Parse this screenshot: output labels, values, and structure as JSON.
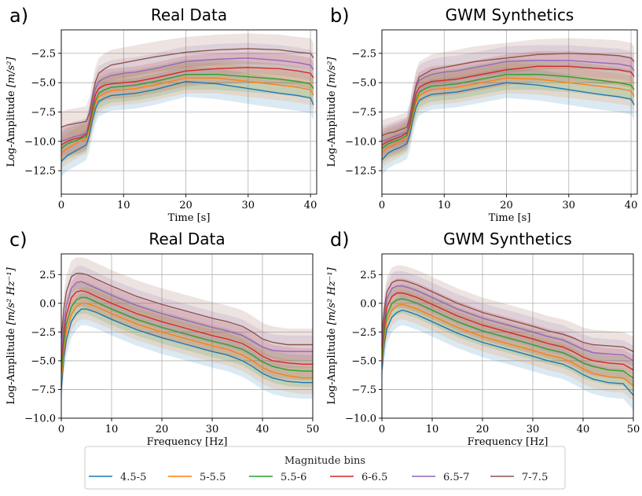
{
  "chart_data": [
    {
      "id": "a",
      "panel_letter": "a)",
      "type": "line",
      "title": "Real Data",
      "xlabel": "Time [s]",
      "ylabel_prefix": "Log-Amplitude ",
      "ylabel_unit": "[m/s²]",
      "xlim": [
        0,
        41
      ],
      "ylim": [
        -14.5,
        -0.5
      ],
      "xticks": [
        0,
        10,
        20,
        30,
        40
      ],
      "yticks": [
        -12.5,
        -10.0,
        -7.5,
        -5.0,
        -2.5
      ],
      "xtick_labels": [
        "0",
        "10",
        "20",
        "30",
        "40"
      ],
      "ytick_labels": [
        "−12.5",
        "−10.0",
        "−7.5",
        "−5.0",
        "−2.5"
      ],
      "grid": true,
      "band_halfwidth": 1.3,
      "x": [
        0,
        1,
        2,
        3,
        4,
        4.5,
        5,
        5.5,
        6,
        7,
        8,
        10,
        12,
        15,
        20,
        25,
        30,
        35,
        38,
        40,
        40.5
      ],
      "series": [
        {
          "name": "4.5-5",
          "values": [
            -11.7,
            -11.2,
            -10.9,
            -10.6,
            -10.3,
            -9.5,
            -8.2,
            -7.2,
            -6.6,
            -6.3,
            -6.1,
            -6.0,
            -5.9,
            -5.6,
            -4.9,
            -5.1,
            -5.5,
            -5.9,
            -6.1,
            -6.3,
            -6.9
          ]
        },
        {
          "name": "5-5.5",
          "values": [
            -11.0,
            -10.6,
            -10.3,
            -10.0,
            -9.8,
            -9.0,
            -7.8,
            -6.8,
            -6.2,
            -5.9,
            -5.7,
            -5.6,
            -5.5,
            -5.2,
            -4.6,
            -4.6,
            -4.9,
            -5.2,
            -5.4,
            -5.6,
            -6.1
          ]
        },
        {
          "name": "5.5-6",
          "values": [
            -10.6,
            -10.2,
            -10.0,
            -9.8,
            -9.6,
            -8.7,
            -7.5,
            -6.5,
            -5.9,
            -5.6,
            -5.4,
            -5.3,
            -5.2,
            -4.9,
            -4.3,
            -4.3,
            -4.5,
            -4.7,
            -4.9,
            -5.1,
            -5.5
          ]
        },
        {
          "name": "6-6.5",
          "values": [
            -10.3,
            -10.0,
            -9.8,
            -9.7,
            -9.4,
            -8.5,
            -7.1,
            -6.0,
            -5.5,
            -5.2,
            -5.1,
            -5.0,
            -4.9,
            -4.6,
            -4.0,
            -3.8,
            -3.7,
            -3.8,
            -4.0,
            -4.2,
            -4.6
          ]
        },
        {
          "name": "6.5-7",
          "values": [
            -10.0,
            -9.8,
            -9.6,
            -9.5,
            -9.3,
            -8.2,
            -6.7,
            -5.5,
            -4.9,
            -4.6,
            -4.4,
            -4.2,
            -4.1,
            -3.8,
            -3.2,
            -3.0,
            -2.9,
            -3.1,
            -3.3,
            -3.5,
            -3.9
          ]
        },
        {
          "name": "7-7.5",
          "values": [
            -8.8,
            -8.6,
            -8.5,
            -8.4,
            -8.3,
            -7.6,
            -6.2,
            -4.9,
            -4.2,
            -3.8,
            -3.5,
            -3.3,
            -3.1,
            -2.8,
            -2.4,
            -2.2,
            -2.1,
            -2.2,
            -2.4,
            -2.5,
            -2.9
          ]
        }
      ]
    },
    {
      "id": "b",
      "panel_letter": "b)",
      "type": "line",
      "title": "GWM Synthetics",
      "xlabel": "Time [s]",
      "ylabel_prefix": "Log-Amplitude ",
      "ylabel_unit": "[m/s²]",
      "xlim": [
        0,
        41
      ],
      "ylim": [
        -14.5,
        -0.5
      ],
      "xticks": [
        0,
        10,
        20,
        30,
        40
      ],
      "yticks": [
        -12.5,
        -10.0,
        -7.5,
        -5.0,
        -2.5
      ],
      "xtick_labels": [
        "0",
        "10",
        "20",
        "30",
        "40"
      ],
      "ytick_labels": [
        "−12.5",
        "−10.0",
        "−7.5",
        "−5.0",
        "−2.5"
      ],
      "grid": true,
      "band_halfwidth": 1.3,
      "x": [
        0,
        1,
        2,
        3,
        4,
        4.5,
        5,
        5.5,
        6,
        7,
        8,
        10,
        12,
        15,
        20,
        25,
        30,
        35,
        38,
        40,
        40.5
      ],
      "series": [
        {
          "name": "4.5-5",
          "values": [
            -11.6,
            -11.0,
            -10.7,
            -10.5,
            -10.2,
            -9.4,
            -8.1,
            -7.1,
            -6.5,
            -6.2,
            -6.0,
            -5.9,
            -5.8,
            -5.5,
            -5.0,
            -5.2,
            -5.6,
            -6.0,
            -6.2,
            -6.4,
            -6.9
          ]
        },
        {
          "name": "5-5.5",
          "values": [
            -11.0,
            -10.5,
            -10.3,
            -10.0,
            -9.7,
            -8.9,
            -7.7,
            -6.7,
            -6.1,
            -5.8,
            -5.6,
            -5.5,
            -5.4,
            -5.1,
            -4.6,
            -4.7,
            -5.0,
            -5.3,
            -5.5,
            -5.7,
            -6.2
          ]
        },
        {
          "name": "5.5-6",
          "values": [
            -10.6,
            -10.2,
            -10.0,
            -9.8,
            -9.5,
            -8.6,
            -7.4,
            -6.4,
            -5.8,
            -5.5,
            -5.3,
            -5.2,
            -5.1,
            -4.8,
            -4.3,
            -4.3,
            -4.5,
            -4.8,
            -5.0,
            -5.2,
            -5.6
          ]
        },
        {
          "name": "6-6.5",
          "values": [
            -10.3,
            -10.0,
            -9.8,
            -9.6,
            -9.3,
            -8.4,
            -7.0,
            -5.9,
            -5.4,
            -5.1,
            -4.9,
            -4.8,
            -4.7,
            -4.4,
            -3.9,
            -3.6,
            -3.6,
            -3.8,
            -3.9,
            -4.1,
            -4.5
          ]
        },
        {
          "name": "6.5-7",
          "values": [
            -10.0,
            -9.8,
            -9.6,
            -9.4,
            -9.2,
            -8.1,
            -6.6,
            -5.4,
            -4.8,
            -4.5,
            -4.3,
            -4.1,
            -4.0,
            -3.7,
            -3.2,
            -3.1,
            -3.1,
            -3.3,
            -3.4,
            -3.6,
            -4.0
          ]
        },
        {
          "name": "7-7.5",
          "values": [
            -9.5,
            -9.3,
            -9.2,
            -9.0,
            -8.8,
            -7.9,
            -6.4,
            -5.2,
            -4.5,
            -4.2,
            -3.9,
            -3.7,
            -3.5,
            -3.2,
            -2.9,
            -2.6,
            -2.5,
            -2.6,
            -2.7,
            -2.9,
            -3.2
          ]
        }
      ]
    },
    {
      "id": "c",
      "panel_letter": "c)",
      "type": "line",
      "title": "Real Data",
      "xlabel": "Frequency [Hz]",
      "ylabel_prefix": "Log-Amplitude ",
      "ylabel_unit": "[m/s² Hz⁻¹]",
      "xlim": [
        0,
        50
      ],
      "ylim": [
        -10.0,
        4.3
      ],
      "xticks": [
        0,
        10,
        20,
        30,
        40,
        50
      ],
      "yticks": [
        -10.0,
        -7.5,
        -5.0,
        -2.5,
        0.0,
        2.5
      ],
      "xtick_labels": [
        "0",
        "10",
        "20",
        "30",
        "40",
        "50"
      ],
      "ytick_labels": [
        "−10.0",
        "−7.5",
        "−5.0",
        "−2.5",
        "0.0",
        "2.5"
      ],
      "grid": true,
      "band_halfwidth": 1.4,
      "x": [
        0,
        0.5,
        1,
        2,
        3,
        4,
        5,
        7,
        10,
        15,
        20,
        25,
        30,
        33,
        36,
        38,
        40,
        42,
        45,
        48,
        50
      ],
      "series": [
        {
          "name": "4.5-5",
          "values": [
            -7.5,
            -4.8,
            -3.2,
            -1.6,
            -0.9,
            -0.5,
            -0.5,
            -0.8,
            -1.4,
            -2.3,
            -3.0,
            -3.6,
            -4.2,
            -4.5,
            -5.0,
            -5.5,
            -6.1,
            -6.5,
            -6.8,
            -6.9,
            -6.9
          ]
        },
        {
          "name": "5-5.5",
          "values": [
            -6.8,
            -4.1,
            -2.5,
            -1.0,
            -0.3,
            0.0,
            0.0,
            -0.3,
            -0.9,
            -1.8,
            -2.5,
            -3.1,
            -3.7,
            -4.0,
            -4.5,
            -5.0,
            -5.6,
            -6.0,
            -6.3,
            -6.5,
            -6.5
          ]
        },
        {
          "name": "5.5-6",
          "values": [
            -6.0,
            -3.4,
            -1.8,
            -0.3,
            0.3,
            0.5,
            0.5,
            0.1,
            -0.5,
            -1.4,
            -2.1,
            -2.7,
            -3.3,
            -3.6,
            -4.0,
            -4.5,
            -5.1,
            -5.5,
            -5.8,
            -5.9,
            -5.9
          ]
        },
        {
          "name": "6-6.5",
          "values": [
            -5.2,
            -2.6,
            -1.0,
            0.5,
            1.0,
            1.1,
            1.0,
            0.6,
            0.0,
            -0.9,
            -1.6,
            -2.2,
            -2.8,
            -3.1,
            -3.5,
            -4.0,
            -4.6,
            -5.0,
            -5.2,
            -5.3,
            -5.3
          ]
        },
        {
          "name": "6.5-7",
          "values": [
            -4.5,
            -1.8,
            -0.2,
            1.3,
            1.8,
            1.9,
            1.7,
            1.3,
            0.7,
            -0.2,
            -0.9,
            -1.5,
            -2.1,
            -2.4,
            -2.8,
            -3.3,
            -3.8,
            -4.1,
            -4.2,
            -4.2,
            -4.2
          ]
        },
        {
          "name": "7-7.5",
          "values": [
            -3.2,
            -0.5,
            1.0,
            2.3,
            2.6,
            2.6,
            2.5,
            2.1,
            1.5,
            0.6,
            -0.1,
            -0.7,
            -1.3,
            -1.6,
            -2.0,
            -2.5,
            -3.1,
            -3.4,
            -3.6,
            -3.6,
            -3.6
          ]
        }
      ]
    },
    {
      "id": "d",
      "panel_letter": "d)",
      "type": "line",
      "title": "GWM Synthetics",
      "xlabel": "Frequency [Hz]",
      "ylabel_prefix": "Log-Amplitude ",
      "ylabel_unit": "[m/s² Hz⁻¹]",
      "xlim": [
        0,
        50
      ],
      "ylim": [
        -10.0,
        4.3
      ],
      "xticks": [
        0,
        10,
        20,
        30,
        40,
        50
      ],
      "yticks": [
        -10.0,
        -7.5,
        -5.0,
        -2.5,
        0.0,
        2.5
      ],
      "xtick_labels": [
        "0",
        "10",
        "20",
        "30",
        "40",
        "50"
      ],
      "ytick_labels": [
        "−10.0",
        "−7.5",
        "−5.0",
        "−2.5",
        "0.0",
        "2.5"
      ],
      "grid": true,
      "band_halfwidth": 1.3,
      "x": [
        0,
        0.5,
        1,
        2,
        3,
        4,
        5,
        7,
        10,
        15,
        20,
        25,
        30,
        33,
        36,
        38,
        40,
        42,
        45,
        48,
        50
      ],
      "series": [
        {
          "name": "4.5-5",
          "values": [
            -5.8,
            -3.5,
            -2.2,
            -1.2,
            -0.8,
            -0.6,
            -0.7,
            -1.0,
            -1.6,
            -2.6,
            -3.4,
            -4.0,
            -4.6,
            -5.0,
            -5.3,
            -5.7,
            -6.2,
            -6.6,
            -6.9,
            -7.0,
            -8.0
          ]
        },
        {
          "name": "5-5.5",
          "values": [
            -5.2,
            -2.9,
            -1.6,
            -0.6,
            -0.2,
            -0.1,
            -0.2,
            -0.5,
            -1.1,
            -2.1,
            -2.9,
            -3.5,
            -4.1,
            -4.5,
            -4.8,
            -5.2,
            -5.7,
            -6.1,
            -6.4,
            -6.5,
            -7.2
          ]
        },
        {
          "name": "5.5-6",
          "values": [
            -4.6,
            -2.3,
            -1.0,
            0.0,
            0.3,
            0.4,
            0.3,
            0.0,
            -0.6,
            -1.6,
            -2.4,
            -3.0,
            -3.6,
            -4.0,
            -4.3,
            -4.7,
            -5.2,
            -5.5,
            -5.8,
            -5.9,
            -6.5
          ]
        },
        {
          "name": "6-6.5",
          "values": [
            -4.0,
            -1.7,
            -0.3,
            0.6,
            0.9,
            0.9,
            0.8,
            0.5,
            -0.1,
            -1.1,
            -1.9,
            -2.5,
            -3.1,
            -3.5,
            -3.8,
            -4.2,
            -4.7,
            -5.0,
            -5.2,
            -5.3,
            -5.8
          ]
        },
        {
          "name": "6.5-7",
          "values": [
            -3.3,
            -1.0,
            0.4,
            1.3,
            1.5,
            1.5,
            1.4,
            1.1,
            0.5,
            -0.5,
            -1.3,
            -1.9,
            -2.5,
            -2.9,
            -3.2,
            -3.6,
            -4.0,
            -4.3,
            -4.4,
            -4.5,
            -5.0
          ]
        },
        {
          "name": "7-7.5",
          "values": [
            -2.7,
            -0.4,
            1.0,
            1.8,
            2.0,
            2.0,
            1.9,
            1.6,
            1.0,
            0.0,
            -0.8,
            -1.4,
            -2.0,
            -2.4,
            -2.7,
            -3.0,
            -3.4,
            -3.6,
            -3.7,
            -3.8,
            -4.2
          ]
        }
      ]
    }
  ],
  "legend": {
    "title": "Magnitude bins",
    "position": "bottom-center",
    "entries": [
      "4.5-5",
      "5-5.5",
      "5.5-6",
      "6-6.5",
      "6.5-7",
      "7-7.5"
    ]
  },
  "colors": {
    "4.5-5": "#1f77b4",
    "5-5.5": "#ff7f0e",
    "5.5-6": "#2ca02c",
    "6-6.5": "#d62728",
    "6.5-7": "#9467bd",
    "7-7.5": "#8c564b"
  }
}
